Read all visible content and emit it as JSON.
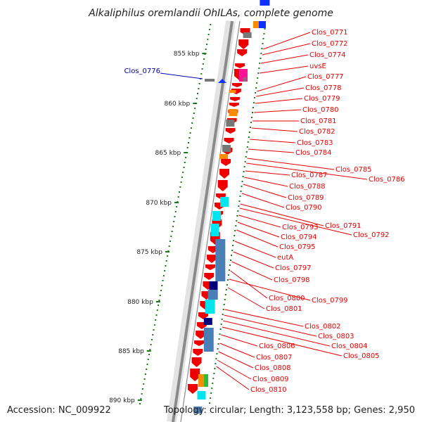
{
  "title": "Alkaliphilus oremlandii OhILAs, complete genome",
  "footer": {
    "accession": "Accession: NC_009922",
    "topology": "Topology: circular; Length: 3,123,558 bp; Genes: 2,950"
  },
  "ruler": [
    "855 kbp",
    "860 kbp",
    "865 kbp",
    "870 kbp",
    "875 kbp",
    "880 kbp",
    "885 kbp",
    "890 kbp"
  ],
  "left_gene": "Clos_0776",
  "gene_labels": [
    "Clos_0771",
    "Clos_0772",
    "Clos_0774",
    "uvsE",
    "Clos_0777",
    "Clos_0778",
    "Clos_0779",
    "Clos_0780",
    "Clos_0781",
    "Clos_0782",
    "Clos_0783",
    "Clos_0784",
    "Clos_0785",
    "Clos_0786",
    "Clos_0787",
    "Clos_0788",
    "Clos_0789",
    "Clos_0790",
    "Clos_0791",
    "Clos_0792",
    "Clos_0793",
    "Clos_0794",
    "Clos_0795",
    "eutA",
    "Clos_0797",
    "Clos_0798",
    "Clos_0800",
    "Clos_0799",
    "Clos_0801",
    "Clos_0802",
    "Clos_0803",
    "Clos_0804",
    "Clos_0805",
    "Clos_0806",
    "Clos_0807",
    "Clos_0808",
    "Clos_0809",
    "Clos_0810"
  ],
  "colors": {
    "forward_gene": "#ee0000",
    "ruler_tick": "#1a7a1a",
    "label_red": "#e60000",
    "label_blue": "#0000aa",
    "backbone": "#8a8a8a",
    "cyan": "#00e5ee",
    "steel_blue": "#4a7fb5",
    "navy": "#00007a",
    "orange": "#ff8c00",
    "magenta": "#ff1493",
    "gray": "#777777",
    "green": "#33bb33"
  }
}
